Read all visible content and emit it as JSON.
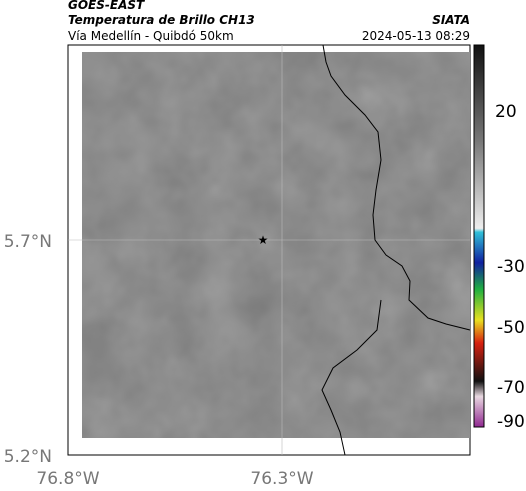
{
  "header": {
    "source": "GOES-EAST",
    "title": "Temperatura de Brillo CH13",
    "agency": "SIATA",
    "subtitle": "Vía Medellín - Quibdó 50km",
    "timestamp": "2024-05-13 08:29"
  },
  "map": {
    "lat_ticks": [
      "5.7°N",
      "5.2°N"
    ],
    "lon_ticks": [
      "76.8°W",
      "76.3°W"
    ]
  },
  "colorbar": {
    "ticks": [
      20,
      -30,
      -50,
      -70,
      -90
    ]
  }
}
